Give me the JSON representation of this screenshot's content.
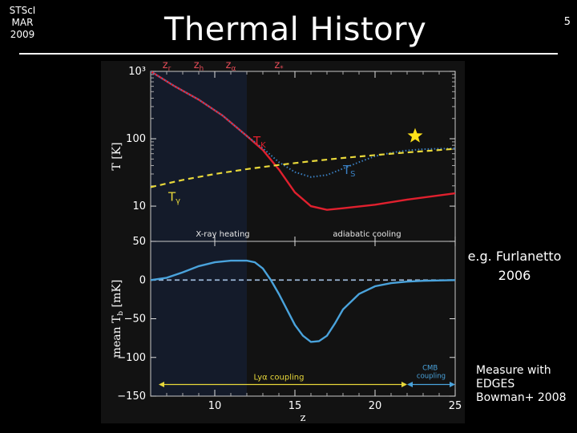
{
  "header": {
    "affiliation_lines": [
      "STScI",
      "MAR",
      "2009"
    ],
    "title": "Thermal History",
    "page_number": "5"
  },
  "notes": {
    "reference_lines": [
      "e.g. Furlanetto",
      "2006"
    ],
    "measure_lines": [
      "Measure with",
      "EDGES",
      "Bowman+ 2008"
    ]
  },
  "colors": {
    "background": "#000000",
    "panel": "#121212",
    "shaded_region": "#141b2a",
    "tk_curve": "#e0202e",
    "ts_curve": "#3a7fc1",
    "tgamma_curve": "#e8d83a",
    "tb_curve": "#4aa3dc",
    "coupling_arrow": "#e8d83a",
    "cmb_arrow": "#4aa3dc",
    "star": "#ffe21a"
  },
  "chart_data": [
    {
      "type": "line",
      "panel": "top",
      "ylabel": "T [K]",
      "yscale": "log",
      "ylim": [
        3,
        1000
      ],
      "xlim": [
        6,
        25
      ],
      "y_ticks": [
        10,
        100,
        1000
      ],
      "y_tick_labels": [
        "10",
        "100",
        "10³"
      ],
      "top_axis_labels": [
        {
          "label": "zr",
          "text": "z",
          "sub": "r",
          "x": 7
        },
        {
          "label": "zh",
          "text": "z",
          "sub": "h",
          "x": 9
        },
        {
          "label": "zα",
          "text": "z",
          "sub": "α",
          "x": 11
        },
        {
          "label": "z*",
          "text": "z",
          "sub": "*",
          "x": 14
        }
      ],
      "series": [
        {
          "name": "TK",
          "label_text": "T",
          "label_sub": "K",
          "style": "solid",
          "x": [
            6.0,
            7.5,
            9.0,
            10.5,
            12.0,
            13.0,
            14.0,
            15.0,
            16.0,
            17.0,
            18.0,
            20.0,
            22.0,
            25.0
          ],
          "y": [
            1000,
            600,
            380,
            220,
            110,
            68,
            35,
            16,
            10,
            8.8,
            9.3,
            10.5,
            12.5,
            15.5
          ]
        },
        {
          "name": "TS",
          "label_text": "T",
          "label_sub": "S",
          "style": "dotted",
          "x": [
            6.0,
            7.5,
            9.0,
            10.5,
            12.0,
            13.0,
            14.0,
            15.0,
            16.0,
            17.0,
            18.0,
            19.0,
            20.0,
            21.0,
            22.0,
            23.0,
            25.0
          ],
          "y": [
            1000,
            600,
            380,
            220,
            110,
            72,
            45,
            32,
            27,
            29,
            36,
            45,
            55,
            62,
            67,
            70,
            72
          ]
        },
        {
          "name": "Tγ",
          "label_text": "T",
          "label_sub": "γ",
          "style": "dashed",
          "x": [
            6,
            8,
            10,
            12,
            14,
            16,
            18,
            20,
            22,
            25
          ],
          "y": [
            19.1,
            24.5,
            30.0,
            35.4,
            40.9,
            46.3,
            51.8,
            57.2,
            62.7,
            70.9
          ]
        }
      ],
      "markers": [
        {
          "name": "star",
          "x": 22.5,
          "y": 110
        }
      ],
      "annotations": [
        "X-ray heating",
        "adiabatic cooling"
      ]
    },
    {
      "type": "line",
      "panel": "bottom",
      "xlabel": "z",
      "ylabel_main": "mean T",
      "ylabel_sub": "b",
      "ylabel_unit": " [mK]",
      "xlim": [
        6,
        25
      ],
      "ylim": [
        -150,
        50
      ],
      "x_ticks": [
        10,
        15,
        20,
        25
      ],
      "y_ticks": [
        50,
        0,
        -50,
        -100,
        -150
      ],
      "y_tick_labels": [
        "50",
        "0",
        "−50",
        "−100",
        "−150"
      ],
      "reference_line": {
        "y": 0,
        "style": "dashed"
      },
      "series": [
        {
          "name": "mean Tb",
          "x": [
            6.0,
            7.0,
            8.0,
            9.0,
            10.0,
            11.0,
            12.0,
            12.5,
            13.0,
            13.5,
            14.0,
            14.5,
            15.0,
            15.5,
            16.0,
            16.5,
            17.0,
            17.5,
            18.0,
            19.0,
            20.0,
            21.0,
            22.0,
            23.0,
            25.0
          ],
          "y": [
            0,
            3,
            10,
            18,
            23,
            25,
            25,
            23,
            15,
            0,
            -18,
            -38,
            -58,
            -72,
            -80,
            -79,
            -72,
            -56,
            -38,
            -18,
            -8,
            -4,
            -2,
            -1,
            0
          ]
        }
      ],
      "annotations": [
        "Lyα coupling",
        "CMB coupling"
      ],
      "ranges": [
        {
          "name": "Lyα coupling",
          "x": [
            6.5,
            22
          ]
        },
        {
          "name": "CMB coupling",
          "x": [
            22,
            25
          ]
        }
      ]
    }
  ]
}
